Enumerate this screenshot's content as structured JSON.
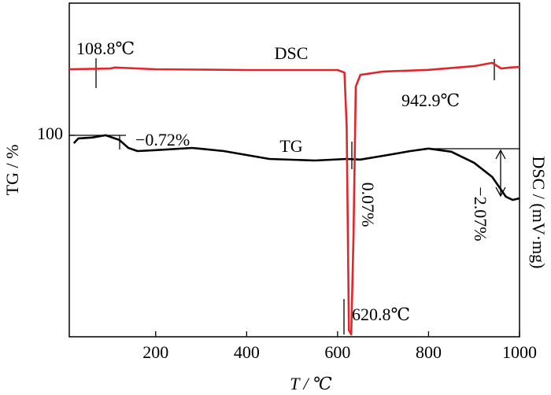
{
  "chart_data": {
    "type": "line",
    "xlabel": "T / ℃",
    "ylabel": "TG / %",
    "y2label": "DSC / (mV·mg)",
    "xlim": [
      10,
      1000
    ],
    "xticks": [
      200,
      400,
      600,
      800,
      1000
    ],
    "ylim": [
      91.05,
      105.87
    ],
    "yticks": [
      100
    ],
    "y2lim": [
      0,
      100
    ],
    "series": [
      {
        "name": "TG",
        "color": "#000000",
        "axis": "y",
        "x": [
          20,
          30,
          60,
          90,
          120,
          140,
          160,
          200,
          280,
          350,
          450,
          550,
          620,
          650,
          700,
          760,
          800,
          850,
          900,
          940,
          970,
          985,
          1000
        ],
        "values": [
          99.65,
          99.86,
          99.9,
          100.0,
          99.79,
          99.44,
          99.3,
          99.34,
          99.44,
          99.3,
          98.95,
          98.88,
          98.95,
          98.92,
          99.09,
          99.3,
          99.41,
          99.27,
          98.78,
          98.15,
          97.27,
          97.13,
          97.2
        ]
      },
      {
        "name": "DSC",
        "color": "#e0262b",
        "axis": "y2",
        "x": [
          10,
          100,
          110,
          200,
          400,
          600,
          615,
          620,
          625,
          630,
          635,
          640,
          650,
          700,
          800,
          900,
          940,
          960,
          980,
          1000
        ],
        "values": [
          80.2,
          80.4,
          80.7,
          80.2,
          79.95,
          79.95,
          79.2,
          63.2,
          1.9,
          0.7,
          30.2,
          75.0,
          78.5,
          79.5,
          80.0,
          81.1,
          82.1,
          80.4,
          80.7,
          80.9
        ]
      }
    ],
    "annotations": [
      "108.8℃",
      "942.9℃",
      "−0.72%",
      "0.07%",
      "−2.07%",
      "620.8℃"
    ]
  }
}
